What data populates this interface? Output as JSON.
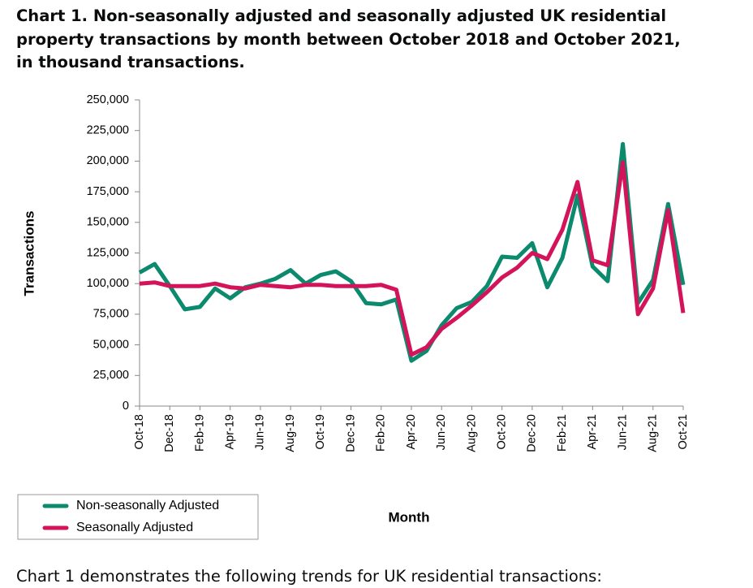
{
  "chart_data": {
    "type": "line",
    "title": "Chart 1. Non-seasonally adjusted and seasonally adjusted UK residential property transactions by month between October 2018 and October 2021, in thousand transactions.",
    "x_label": "Month",
    "y_label": "Transactions",
    "categories": [
      "Oct-18",
      null,
      "Dec-18",
      null,
      "Feb-19",
      null,
      "Apr-19",
      null,
      "Jun-19",
      null,
      "Aug-19",
      null,
      "Oct-19",
      null,
      "Dec-19",
      null,
      "Feb-20",
      null,
      "Apr-20",
      null,
      "Jun-20",
      null,
      "Aug-20",
      null,
      "Oct-20",
      null,
      "Dec-20",
      null,
      "Feb-21",
      null,
      "Apr-21",
      null,
      "Jun-21",
      null,
      "Aug-21",
      null,
      "Oct-21"
    ],
    "series": [
      {
        "name": "Non-seasonally Adjusted",
        "color": "#0b8a6e",
        "values": [
          109000,
          116000,
          98000,
          79000,
          81000,
          96000,
          88000,
          97000,
          100000,
          104000,
          111000,
          100000,
          107000,
          110000,
          102000,
          84000,
          83000,
          87000,
          37000,
          45000,
          66000,
          80000,
          85000,
          98000,
          122000,
          121000,
          133000,
          97000,
          121000,
          172000,
          114000,
          102000,
          214000,
          84000,
          103000,
          165000,
          99000
        ]
      },
      {
        "name": "Seasonally Adjusted",
        "color": "#d4145a",
        "values": [
          100000,
          101000,
          98000,
          98000,
          98000,
          100000,
          97000,
          96000,
          99000,
          98000,
          97000,
          99000,
          99000,
          98000,
          98000,
          98000,
          99000,
          95000,
          42000,
          48000,
          63000,
          72000,
          82000,
          93000,
          105000,
          113000,
          125000,
          120000,
          144000,
          183000,
          119000,
          115000,
          199000,
          75000,
          96000,
          160000,
          76000
        ]
      }
    ],
    "ylim": [
      0,
      250000
    ],
    "yticks": [
      0,
      {
        "value": 25000,
        "label": "25,000"
      },
      {
        "value": 50000,
        "label": "50,000"
      },
      {
        "value": 75000,
        "label": "75,000"
      },
      {
        "value": 100000,
        "label": "100,000"
      },
      {
        "value": 125000,
        "label": "125,000"
      },
      {
        "value": 150000,
        "label": "150,000"
      },
      {
        "value": 175000,
        "label": "175,000"
      },
      {
        "value": 200000,
        "label": "200,000"
      },
      {
        "value": 225000,
        "label": "225,000"
      },
      {
        "value": 250000,
        "label": "250,000"
      }
    ],
    "grid": false
  },
  "paragraph": "Chart 1 demonstrates the following trends for UK residential transactions:"
}
